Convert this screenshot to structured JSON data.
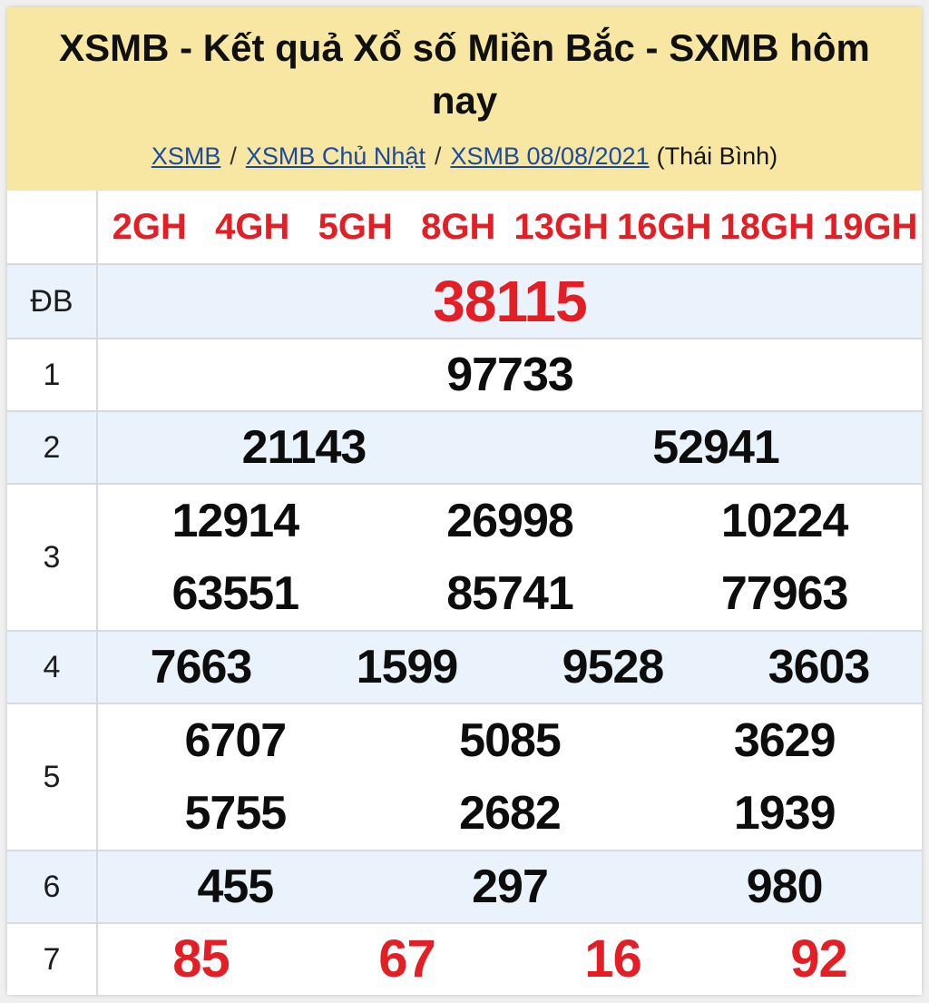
{
  "header": {
    "title": "XSMB - Kết quả Xổ số Miền Bắc - SXMB hôm nay",
    "breadcrumb_links": [
      "XSMB",
      "XSMB Chủ Nhật",
      "XSMB 08/08/2021"
    ],
    "breadcrumb_separator": "/",
    "breadcrumb_suffix": "(Thái Bình)"
  },
  "table": {
    "column_headers": [
      "2GH",
      "4GH",
      "5GH",
      "8GH",
      "13GH",
      "16GH",
      "18GH",
      "19GH"
    ],
    "rows": [
      {
        "label": "ĐB",
        "style": "special",
        "striped": true,
        "lines": [
          [
            "38115"
          ]
        ]
      },
      {
        "label": "1",
        "style": "normal",
        "striped": false,
        "lines": [
          [
            "97733"
          ]
        ]
      },
      {
        "label": "2",
        "style": "normal",
        "striped": true,
        "lines": [
          [
            "21143",
            "52941"
          ]
        ]
      },
      {
        "label": "3",
        "style": "normal",
        "striped": false,
        "lines": [
          [
            "12914",
            "26998",
            "10224"
          ],
          [
            "63551",
            "85741",
            "77963"
          ]
        ]
      },
      {
        "label": "4",
        "style": "normal",
        "striped": true,
        "lines": [
          [
            "7663",
            "1599",
            "9528",
            "3603"
          ]
        ]
      },
      {
        "label": "5",
        "style": "normal",
        "striped": false,
        "lines": [
          [
            "6707",
            "5085",
            "3629"
          ],
          [
            "5755",
            "2682",
            "1939"
          ]
        ]
      },
      {
        "label": "6",
        "style": "normal",
        "striped": true,
        "lines": [
          [
            "455",
            "297",
            "980"
          ]
        ]
      },
      {
        "label": "7",
        "style": "last-red",
        "striped": false,
        "lines": [
          [
            "85",
            "67",
            "16",
            "92"
          ]
        ]
      }
    ]
  },
  "colors": {
    "header_background": "#f7e7a3",
    "accent_red": "#e31e25",
    "link_blue": "#1b4a9f",
    "stripe_blue": "#eaf2fb",
    "border_gray": "#d6dade"
  }
}
